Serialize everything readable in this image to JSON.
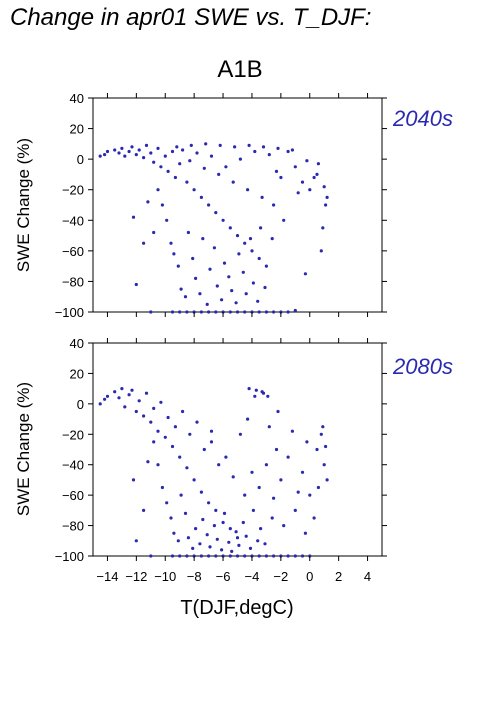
{
  "title": "Change in apr01 SWE vs. T_DJF:",
  "scenario": "A1B",
  "chart_data": [
    {
      "type": "scatter",
      "period_label": "2040s",
      "ylabel": "SWE Change (%)",
      "xlabel": "",
      "xlim": [
        -15,
        5
      ],
      "ylim": [
        -100,
        40
      ],
      "yticks": [
        "40",
        "20",
        "0",
        "−20",
        "−40",
        "−60",
        "−80",
        "−100"
      ],
      "point_color": "#2a2ab0",
      "points": [
        [
          -14.5,
          2
        ],
        [
          -14.2,
          3
        ],
        [
          -14.0,
          5
        ],
        [
          -13.5,
          6
        ],
        [
          -13.2,
          4
        ],
        [
          -13.0,
          7
        ],
        [
          -12.8,
          2
        ],
        [
          -12.5,
          5
        ],
        [
          -12.3,
          8
        ],
        [
          -12.0,
          3
        ],
        [
          -11.8,
          6
        ],
        [
          -11.5,
          1
        ],
        [
          -11.3,
          9
        ],
        [
          -11.0,
          4
        ],
        [
          -10.8,
          -2
        ],
        [
          -10.5,
          7
        ],
        [
          -10.3,
          -5
        ],
        [
          -10.0,
          2
        ],
        [
          -9.8,
          -8
        ],
        [
          -9.5,
          5
        ],
        [
          -9.3,
          -12
        ],
        [
          -9.0,
          -3
        ],
        [
          -8.8,
          6
        ],
        [
          -8.5,
          -15
        ],
        [
          -8.3,
          -1
        ],
        [
          -8.0,
          -20
        ],
        [
          -7.8,
          4
        ],
        [
          -7.5,
          -25
        ],
        [
          -7.3,
          -6
        ],
        [
          -7.0,
          -30
        ],
        [
          -6.8,
          2
        ],
        [
          -6.5,
          -35
        ],
        [
          -6.3,
          -10
        ],
        [
          -6.0,
          -40
        ],
        [
          -5.8,
          -5
        ],
        [
          -5.5,
          -45
        ],
        [
          -5.3,
          -15
        ],
        [
          -5.0,
          -50
        ],
        [
          -4.8,
          0
        ],
        [
          -4.5,
          -55
        ],
        [
          -4.3,
          -20
        ],
        [
          -4.0,
          -60
        ],
        [
          -3.8,
          5
        ],
        [
          -3.5,
          -65
        ],
        [
          -3.3,
          -25
        ],
        [
          -3.0,
          -70
        ],
        [
          -2.8,
          3
        ],
        [
          -2.5,
          -30
        ],
        [
          -2.3,
          -8
        ],
        [
          -2.0,
          -12
        ],
        [
          -1.5,
          5
        ],
        [
          -1.0,
          -5
        ],
        [
          -0.5,
          -15
        ],
        [
          0.0,
          -20
        ],
        [
          0.5,
          -10
        ],
        [
          1.0,
          -18
        ],
        [
          1.2,
          -25
        ],
        [
          0.8,
          -60
        ],
        [
          -0.3,
          -75
        ],
        [
          -1.8,
          -40
        ],
        [
          -10.5,
          -20
        ],
        [
          -10.2,
          -30
        ],
        [
          -9.9,
          -40
        ],
        [
          -9.6,
          -55
        ],
        [
          -9.4,
          -62
        ],
        [
          -9.1,
          -70
        ],
        [
          -8.9,
          -85
        ],
        [
          -8.6,
          -90
        ],
        [
          -8.4,
          -48
        ],
        [
          -8.1,
          -65
        ],
        [
          -7.9,
          -78
        ],
        [
          -7.6,
          -88
        ],
        [
          -7.4,
          -52
        ],
        [
          -7.1,
          -95
        ],
        [
          -6.9,
          -72
        ],
        [
          -6.6,
          -58
        ],
        [
          -6.4,
          -83
        ],
        [
          -6.1,
          -92
        ],
        [
          -5.9,
          -68
        ],
        [
          -5.6,
          -77
        ],
        [
          -5.4,
          -86
        ],
        [
          -5.1,
          -94
        ],
        [
          -4.9,
          -62
        ],
        [
          -4.6,
          -74
        ],
        [
          -4.4,
          -88
        ],
        [
          -4.1,
          -52
        ],
        [
          -3.9,
          -81
        ],
        [
          -3.6,
          -93
        ],
        [
          -3.4,
          -45
        ],
        [
          -3.1,
          -84
        ],
        [
          -9.5,
          -100
        ],
        [
          -9.0,
          -100
        ],
        [
          -8.5,
          -100
        ],
        [
          -8.0,
          -100
        ],
        [
          -7.5,
          -100
        ],
        [
          -7.0,
          -100
        ],
        [
          -6.5,
          -100
        ],
        [
          -6.0,
          -100
        ],
        [
          -5.5,
          -100
        ],
        [
          -5.0,
          -100
        ],
        [
          -4.5,
          -100
        ],
        [
          -4.0,
          -100
        ],
        [
          -3.5,
          -100
        ],
        [
          -3.0,
          -100
        ],
        [
          -2.5,
          -100
        ],
        [
          -2.0,
          -100
        ],
        [
          -1.5,
          -100
        ],
        [
          -11.0,
          -100
        ],
        [
          -1.0,
          -99
        ],
        [
          -12.0,
          -82
        ],
        [
          -11.5,
          -55
        ],
        [
          -12.2,
          -38
        ],
        [
          -11.2,
          -28
        ],
        [
          -10.8,
          -48
        ],
        [
          -9.2,
          8
        ],
        [
          -8.2,
          9
        ],
        [
          -7.2,
          10
        ],
        [
          -6.2,
          9
        ],
        [
          -5.2,
          8
        ],
        [
          -4.2,
          9
        ],
        [
          -3.2,
          8
        ],
        [
          -2.2,
          7
        ],
        [
          -1.2,
          6
        ],
        [
          -0.2,
          -1
        ],
        [
          0.6,
          -3
        ],
        [
          1.1,
          -30
        ],
        [
          0.9,
          -45
        ],
        [
          0.3,
          -12
        ],
        [
          -0.8,
          -22
        ],
        [
          -2.6,
          -52
        ]
      ]
    },
    {
      "type": "scatter",
      "period_label": "2080s",
      "ylabel": "SWE Change (%)",
      "xlabel": "T(DJF,degC)",
      "xlim": [
        -15,
        5
      ],
      "ylim": [
        -100,
        40
      ],
      "yticks": [
        "40",
        "20",
        "0",
        "−20",
        "−40",
        "−60",
        "−80",
        "−100"
      ],
      "xticks": [
        "−14",
        "−12",
        "−10",
        "−8",
        "−6",
        "−4",
        "−2",
        "0",
        "2",
        "4"
      ],
      "point_color": "#2a2ab0",
      "points": [
        [
          -14.5,
          0
        ],
        [
          -14.2,
          3
        ],
        [
          -14.0,
          5
        ],
        [
          -13.5,
          8
        ],
        [
          -13.2,
          4
        ],
        [
          -13.0,
          10
        ],
        [
          -12.8,
          -2
        ],
        [
          -12.5,
          6
        ],
        [
          -12.3,
          9
        ],
        [
          -12.0,
          -5
        ],
        [
          -11.8,
          2
        ],
        [
          -11.5,
          -8
        ],
        [
          -11.3,
          7
        ],
        [
          -11.0,
          -12
        ],
        [
          -10.8,
          -3
        ],
        [
          -10.5,
          -18
        ],
        [
          -10.3,
          1
        ],
        [
          -10.0,
          -22
        ],
        [
          -9.8,
          -9
        ],
        [
          -9.5,
          -28
        ],
        [
          -9.3,
          -15
        ],
        [
          -9.0,
          -35
        ],
        [
          -8.8,
          -5
        ],
        [
          -8.5,
          -42
        ],
        [
          -8.3,
          -20
        ],
        [
          -8.0,
          -50
        ],
        [
          -7.8,
          -12
        ],
        [
          -7.5,
          -58
        ],
        [
          -7.3,
          -30
        ],
        [
          -7.0,
          -65
        ],
        [
          -6.8,
          -25
        ],
        [
          -6.5,
          -70
        ],
        [
          -6.3,
          -40
        ],
        [
          -6.0,
          -78
        ],
        [
          -5.8,
          -35
        ],
        [
          -5.5,
          -82
        ],
        [
          -5.3,
          -48
        ],
        [
          -5.0,
          -88
        ],
        [
          -4.8,
          -20
        ],
        [
          -4.5,
          -60
        ],
        [
          -4.3,
          -10
        ],
        [
          -4.0,
          -45
        ],
        [
          -3.8,
          5
        ],
        [
          -3.5,
          -55
        ],
        [
          -3.3,
          8
        ],
        [
          -3.0,
          -40
        ],
        [
          -2.8,
          -15
        ],
        [
          -2.5,
          -62
        ],
        [
          -2.3,
          -30
        ],
        [
          -2.0,
          -50
        ],
        [
          -1.5,
          -35
        ],
        [
          -1.0,
          -70
        ],
        [
          -0.5,
          -45
        ],
        [
          0.0,
          -60
        ],
        [
          0.5,
          -30
        ],
        [
          1.0,
          -40
        ],
        [
          1.2,
          -50
        ],
        [
          0.8,
          -20
        ],
        [
          -0.3,
          -85
        ],
        [
          -1.8,
          -80
        ],
        [
          -10.5,
          -40
        ],
        [
          -10.2,
          -55
        ],
        [
          -9.9,
          -65
        ],
        [
          -9.6,
          -75
        ],
        [
          -9.4,
          -85
        ],
        [
          -9.1,
          -90
        ],
        [
          -8.9,
          -60
        ],
        [
          -8.6,
          -72
        ],
        [
          -8.4,
          -88
        ],
        [
          -8.1,
          -95
        ],
        [
          -7.9,
          -82
        ],
        [
          -7.6,
          -92
        ],
        [
          -7.4,
          -76
        ],
        [
          -7.1,
          -86
        ],
        [
          -6.9,
          -94
        ],
        [
          -6.6,
          -80
        ],
        [
          -6.4,
          -89
        ],
        [
          -6.1,
          -96
        ],
        [
          -5.9,
          -72
        ],
        [
          -5.6,
          -91
        ],
        [
          -5.4,
          -97
        ],
        [
          -5.1,
          -84
        ],
        [
          -4.9,
          -93
        ],
        [
          -4.6,
          -78
        ],
        [
          -4.4,
          -87
        ],
        [
          -4.1,
          -95
        ],
        [
          -3.9,
          -70
        ],
        [
          -3.6,
          -90
        ],
        [
          -3.4,
          -82
        ],
        [
          -3.1,
          -92
        ],
        [
          -9.5,
          -100
        ],
        [
          -9.0,
          -100
        ],
        [
          -8.5,
          -100
        ],
        [
          -8.0,
          -100
        ],
        [
          -7.5,
          -100
        ],
        [
          -7.0,
          -100
        ],
        [
          -6.5,
          -100
        ],
        [
          -6.0,
          -100
        ],
        [
          -5.5,
          -100
        ],
        [
          -5.0,
          -100
        ],
        [
          -4.5,
          -100
        ],
        [
          -4.0,
          -100
        ],
        [
          -3.5,
          -100
        ],
        [
          -3.0,
          -100
        ],
        [
          -2.5,
          -100
        ],
        [
          -2.0,
          -100
        ],
        [
          -1.5,
          -100
        ],
        [
          -1.0,
          -100
        ],
        [
          -0.5,
          -100
        ],
        [
          0.0,
          -100
        ],
        [
          -11.0,
          -100
        ],
        [
          -12.0,
          -90
        ],
        [
          -11.5,
          -70
        ],
        [
          -12.2,
          -50
        ],
        [
          -11.2,
          -38
        ],
        [
          -10.8,
          -25
        ],
        [
          -4.2,
          10
        ],
        [
          -3.7,
          9
        ],
        [
          -3.2,
          7
        ],
        [
          -2.9,
          5
        ],
        [
          -2.2,
          -5
        ],
        [
          -1.2,
          -18
        ],
        [
          -0.2,
          -25
        ],
        [
          0.6,
          -55
        ],
        [
          1.1,
          -28
        ],
        [
          0.9,
          -15
        ],
        [
          0.3,
          -75
        ],
        [
          -0.8,
          -58
        ],
        [
          -2.6,
          -75
        ],
        [
          -6.8,
          -18
        ]
      ]
    }
  ]
}
